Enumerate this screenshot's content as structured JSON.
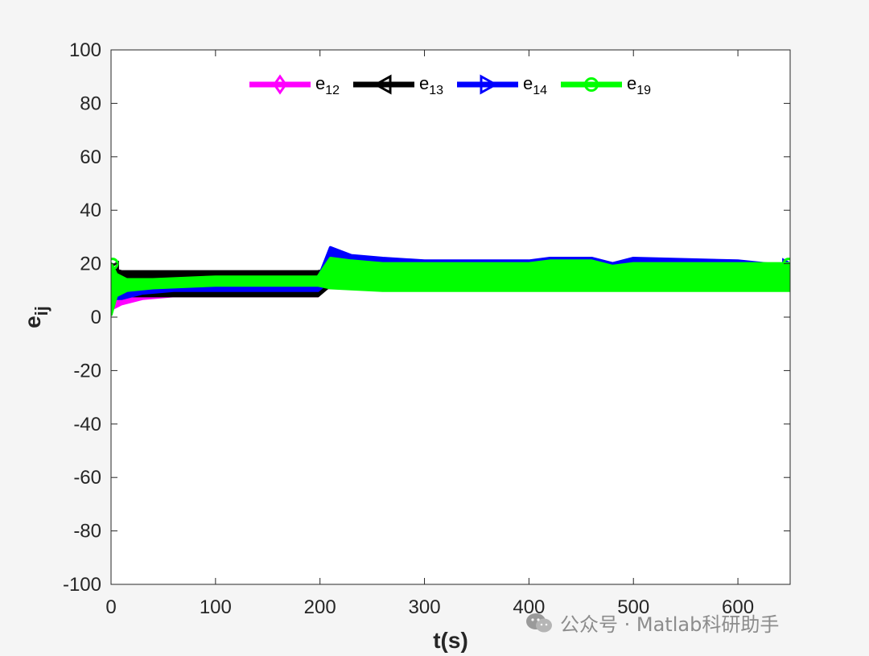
{
  "chart_data": {
    "type": "line",
    "xlabel": "t(s)",
    "ylabel": "e",
    "ylabel_sub": "ij",
    "xlim": [
      0,
      650
    ],
    "ylim": [
      -100,
      100
    ],
    "xticks": [
      0,
      100,
      200,
      300,
      400,
      500,
      600
    ],
    "yticks": [
      -100,
      -80,
      -60,
      -40,
      -20,
      0,
      20,
      40,
      60,
      80,
      100
    ],
    "grid": false,
    "legend_position": "top",
    "series": [
      {
        "name": "e12",
        "label_base": "e",
        "label_sub": "12",
        "color": "#ff00ff",
        "marker": "diamond",
        "band_upper": [
          [
            0,
            10
          ],
          [
            10,
            9
          ],
          [
            30,
            10
          ],
          [
            60,
            11
          ],
          [
            100,
            11
          ],
          [
            198,
            11
          ],
          [
            205,
            16
          ],
          [
            215,
            15
          ],
          [
            260,
            15
          ],
          [
            400,
            15
          ],
          [
            420,
            12
          ],
          [
            440,
            12
          ],
          [
            480,
            11
          ],
          [
            500,
            13
          ],
          [
            600,
            13
          ],
          [
            650,
            13
          ]
        ],
        "band_lower": [
          [
            0,
            3
          ],
          [
            10,
            5
          ],
          [
            30,
            7
          ],
          [
            60,
            8
          ],
          [
            100,
            8
          ],
          [
            198,
            8
          ],
          [
            205,
            11
          ],
          [
            215,
            11
          ],
          [
            300,
            11
          ],
          [
            400,
            11
          ],
          [
            420,
            11
          ],
          [
            480,
            11
          ],
          [
            500,
            11
          ],
          [
            600,
            11
          ],
          [
            650,
            11
          ]
        ]
      },
      {
        "name": "e13",
        "label_base": "e",
        "label_sub": "13",
        "color": "#000000",
        "marker": "triangle-left",
        "band_upper": [
          [
            0,
            18
          ],
          [
            10,
            17
          ],
          [
            30,
            17
          ],
          [
            60,
            17
          ],
          [
            100,
            17
          ],
          [
            198,
            17
          ],
          [
            210,
            18
          ],
          [
            260,
            17
          ],
          [
            400,
            17
          ],
          [
            420,
            16
          ],
          [
            480,
            16
          ],
          [
            500,
            17
          ],
          [
            650,
            17
          ]
        ],
        "band_lower": [
          [
            0,
            9
          ],
          [
            10,
            8
          ],
          [
            30,
            8
          ],
          [
            60,
            8
          ],
          [
            100,
            8
          ],
          [
            198,
            8
          ],
          [
            210,
            12
          ],
          [
            260,
            11
          ],
          [
            400,
            11
          ],
          [
            420,
            12
          ],
          [
            480,
            11
          ],
          [
            500,
            12
          ],
          [
            650,
            12
          ]
        ]
      },
      {
        "name": "e14",
        "label_base": "e",
        "label_sub": "14",
        "color": "#0000ff",
        "marker": "triangle-right",
        "band_upper": [
          [
            0,
            15
          ],
          [
            10,
            12
          ],
          [
            30,
            12
          ],
          [
            60,
            13
          ],
          [
            100,
            13
          ],
          [
            198,
            14
          ],
          [
            210,
            26
          ],
          [
            230,
            23
          ],
          [
            260,
            22
          ],
          [
            300,
            21
          ],
          [
            400,
            21
          ],
          [
            420,
            22
          ],
          [
            460,
            22
          ],
          [
            480,
            20
          ],
          [
            500,
            22
          ],
          [
            600,
            21
          ],
          [
            650,
            19
          ]
        ],
        "band_lower": [
          [
            0,
            7
          ],
          [
            10,
            7
          ],
          [
            30,
            9
          ],
          [
            60,
            10
          ],
          [
            100,
            10
          ],
          [
            198,
            10
          ],
          [
            210,
            14
          ],
          [
            260,
            14
          ],
          [
            400,
            14
          ],
          [
            420,
            14
          ],
          [
            480,
            13
          ],
          [
            500,
            14
          ],
          [
            650,
            14
          ]
        ]
      },
      {
        "name": "e19",
        "label_base": "e",
        "label_sub": "19",
        "color": "#00ff00",
        "marker": "circle",
        "band_upper": [
          [
            0,
            20
          ],
          [
            5,
            16
          ],
          [
            15,
            14
          ],
          [
            40,
            14
          ],
          [
            100,
            15
          ],
          [
            198,
            15
          ],
          [
            210,
            22
          ],
          [
            230,
            21
          ],
          [
            260,
            20
          ],
          [
            400,
            20
          ],
          [
            420,
            21
          ],
          [
            460,
            21
          ],
          [
            480,
            19
          ],
          [
            500,
            20
          ],
          [
            600,
            20
          ],
          [
            650,
            20
          ]
        ],
        "band_lower": [
          [
            0,
            1
          ],
          [
            5,
            8
          ],
          [
            15,
            10
          ],
          [
            40,
            11
          ],
          [
            100,
            12
          ],
          [
            198,
            12
          ],
          [
            210,
            11
          ],
          [
            260,
            10
          ],
          [
            400,
            10
          ],
          [
            420,
            10
          ],
          [
            480,
            10
          ],
          [
            500,
            10
          ],
          [
            650,
            10
          ]
        ]
      }
    ]
  },
  "watermark": {
    "text": "公众号 · Matlab科研助手",
    "color": "#8c8c8c",
    "icon": "wechat-icon"
  }
}
